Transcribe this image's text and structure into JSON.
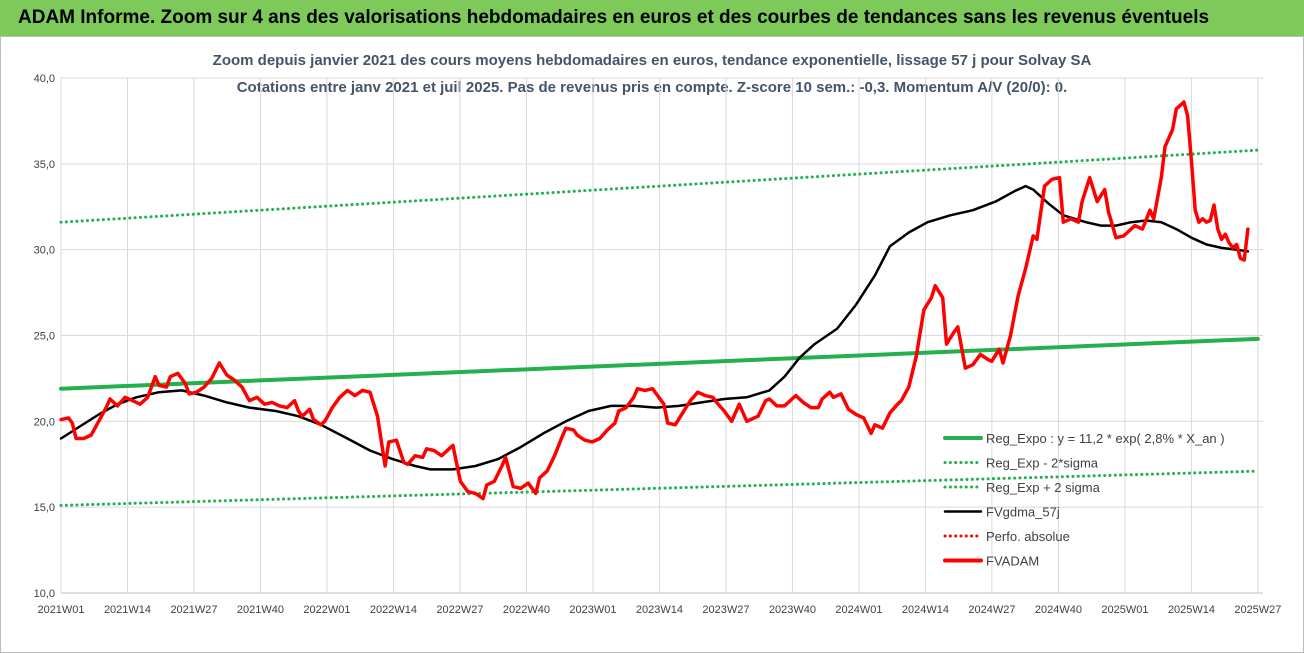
{
  "banner": {
    "text": "ADAM Informe. Zoom sur 4 ans des valorisations hebdomadaires en euros et des courbes de tendances sans les revenus éventuels"
  },
  "chart_data": {
    "type": "line",
    "title": "Zoom depuis janvier 2021 des cours moyens hebdomadaires en euros, tendance exponentielle, lissage 57 j pour Solvay SA",
    "subtitle": "Cotations entre janv 2021 et juil 2025. Pas de revenus pris en compte. Z-score 10 sem.: -0,3. Momentum A/V (20/0): 0.",
    "xlabel": "",
    "ylabel": "",
    "ylim": [
      10,
      40
    ],
    "yticks": [
      "10,0",
      "15,0",
      "20,0",
      "25,0",
      "30,0",
      "35,0",
      "40,0"
    ],
    "x_tick_labels": [
      "2021W01",
      "2021W14",
      "2021W27",
      "2021W40",
      "2022W01",
      "2022W14",
      "2022W27",
      "2022W40",
      "2023W01",
      "2023W14",
      "2023W27",
      "2023W40",
      "2024W01",
      "2024W14",
      "2024W27",
      "2024W40",
      "2025W01",
      "2025W14",
      "2025W27"
    ],
    "grid": true,
    "legend_position": "bottom-right",
    "colors": {
      "green": "#22b14c",
      "black": "#000000",
      "red": "#ff0000"
    },
    "series": [
      {
        "name": "Reg_Expo : y = 11,2 * exp( 2,8% *  X_an )",
        "color": "#22b14c",
        "style": "solid",
        "points": [
          [
            0,
            21.9
          ],
          [
            234,
            24.8
          ]
        ]
      },
      {
        "name": "Reg_Exp - 2*sigma",
        "color": "#22b14c",
        "style": "dotted",
        "points": [
          [
            0,
            15.1
          ],
          [
            234,
            17.1
          ]
        ]
      },
      {
        "name": "Reg_Exp + 2 sigma",
        "color": "#22b14c",
        "style": "dotted",
        "points": [
          [
            0,
            31.6
          ],
          [
            234,
            35.8
          ]
        ]
      },
      {
        "name": "FVgdma_57j",
        "color": "#000000",
        "style": "solid",
        "points": [
          [
            0,
            19.0
          ],
          [
            5,
            19.7
          ],
          [
            10,
            20.4
          ],
          [
            15,
            21.0
          ],
          [
            20,
            21.4
          ],
          [
            26,
            21.7
          ],
          [
            32,
            21.8
          ],
          [
            38,
            21.5
          ],
          [
            44,
            21.1
          ],
          [
            50,
            20.8
          ],
          [
            57,
            20.6
          ],
          [
            63,
            20.3
          ],
          [
            69,
            19.8
          ],
          [
            76,
            19.0
          ],
          [
            82,
            18.3
          ],
          [
            88,
            17.8
          ],
          [
            94,
            17.4
          ],
          [
            98,
            17.2
          ],
          [
            104,
            17.2
          ],
          [
            110,
            17.4
          ],
          [
            116,
            17.8
          ],
          [
            122,
            18.5
          ],
          [
            128,
            19.3
          ],
          [
            134,
            20.0
          ],
          [
            140,
            20.6
          ],
          [
            146,
            20.9
          ],
          [
            152,
            20.9
          ],
          [
            158,
            20.8
          ],
          [
            164,
            20.9
          ],
          [
            170,
            21.1
          ],
          [
            176,
            21.3
          ],
          [
            182,
            21.4
          ],
          [
            188,
            21.8
          ],
          [
            192,
            22.6
          ],
          [
            196,
            23.7
          ],
          [
            200,
            24.5
          ],
          [
            206,
            25.4
          ],
          [
            211,
            26.8
          ],
          [
            216,
            28.5
          ],
          [
            220,
            30.2
          ],
          [
            225,
            31.0
          ],
          [
            230,
            31.6
          ],
          [
            236,
            32.0
          ],
          [
            242,
            32.3
          ],
          [
            248,
            32.8
          ],
          [
            253,
            33.4
          ],
          [
            256,
            33.7
          ],
          [
            258,
            33.5
          ],
          [
            262,
            32.7
          ],
          [
            266,
            32.0
          ],
          [
            272,
            31.6
          ],
          [
            276,
            31.4
          ],
          [
            280,
            31.4
          ],
          [
            284,
            31.6
          ],
          [
            288,
            31.7
          ],
          [
            292,
            31.6
          ],
          [
            296,
            31.2
          ],
          [
            300,
            30.7
          ],
          [
            304,
            30.3
          ],
          [
            308,
            30.1
          ],
          [
            312,
            30.0
          ],
          [
            315,
            29.9
          ]
        ]
      },
      {
        "name": "Perfo. absolue",
        "color": "#ff0000",
        "style": "dotted",
        "points": []
      },
      {
        "name": "FVADAM",
        "color": "#ff0000",
        "style": "solid",
        "points": [
          [
            0,
            20.1
          ],
          [
            2,
            20.2
          ],
          [
            3,
            19.9
          ],
          [
            4,
            19.0
          ],
          [
            6,
            19.0
          ],
          [
            8,
            19.2
          ],
          [
            10,
            20.0
          ],
          [
            12,
            20.8
          ],
          [
            13,
            21.3
          ],
          [
            15,
            20.9
          ],
          [
            17,
            21.4
          ],
          [
            19,
            21.2
          ],
          [
            21,
            21.0
          ],
          [
            23,
            21.4
          ],
          [
            25,
            22.6
          ],
          [
            26,
            22.1
          ],
          [
            28,
            22.0
          ],
          [
            29,
            22.6
          ],
          [
            31,
            22.8
          ],
          [
            33,
            22.2
          ],
          [
            34,
            21.6
          ],
          [
            36,
            21.7
          ],
          [
            38,
            22.0
          ],
          [
            40,
            22.5
          ],
          [
            42,
            23.4
          ],
          [
            44,
            22.7
          ],
          [
            46,
            22.4
          ],
          [
            48,
            22.0
          ],
          [
            50,
            21.2
          ],
          [
            52,
            21.4
          ],
          [
            54,
            21.0
          ],
          [
            56,
            21.1
          ],
          [
            58,
            20.9
          ],
          [
            60,
            20.8
          ],
          [
            62,
            21.2
          ],
          [
            63,
            20.6
          ],
          [
            64,
            20.3
          ],
          [
            66,
            20.7
          ],
          [
            67,
            20.1
          ],
          [
            69,
            19.8
          ],
          [
            70,
            20.0
          ],
          [
            72,
            20.8
          ],
          [
            74,
            21.4
          ],
          [
            76,
            21.8
          ],
          [
            78,
            21.5
          ],
          [
            80,
            21.8
          ],
          [
            82,
            21.7
          ],
          [
            84,
            20.3
          ],
          [
            86,
            17.4
          ],
          [
            87,
            18.8
          ],
          [
            89,
            18.9
          ],
          [
            91,
            17.6
          ],
          [
            92,
            17.5
          ],
          [
            94,
            18.0
          ],
          [
            96,
            17.9
          ],
          [
            97,
            18.4
          ],
          [
            99,
            18.3
          ],
          [
            101,
            18.0
          ],
          [
            103,
            18.4
          ],
          [
            104,
            18.6
          ],
          [
            106,
            16.5
          ],
          [
            108,
            15.9
          ],
          [
            110,
            15.8
          ],
          [
            112,
            15.5
          ],
          [
            113,
            16.3
          ],
          [
            115,
            16.5
          ],
          [
            117,
            17.4
          ],
          [
            118,
            17.9
          ],
          [
            120,
            16.2
          ],
          [
            122,
            16.1
          ],
          [
            124,
            16.4
          ],
          [
            126,
            15.8
          ],
          [
            127,
            16.7
          ],
          [
            129,
            17.1
          ],
          [
            131,
            18.0
          ],
          [
            133,
            19.1
          ],
          [
            134,
            19.6
          ],
          [
            136,
            19.5
          ],
          [
            137,
            19.2
          ],
          [
            139,
            18.9
          ],
          [
            141,
            18.8
          ],
          [
            143,
            19.0
          ],
          [
            145,
            19.5
          ],
          [
            147,
            19.9
          ],
          [
            148,
            20.6
          ],
          [
            150,
            20.8
          ],
          [
            152,
            21.4
          ],
          [
            153,
            21.9
          ],
          [
            155,
            21.8
          ],
          [
            157,
            21.9
          ],
          [
            158,
            21.6
          ],
          [
            160,
            21.0
          ],
          [
            161,
            19.9
          ],
          [
            163,
            19.8
          ],
          [
            165,
            20.5
          ],
          [
            167,
            21.2
          ],
          [
            169,
            21.7
          ],
          [
            171,
            21.5
          ],
          [
            173,
            21.4
          ],
          [
            174,
            21.1
          ],
          [
            176,
            20.6
          ],
          [
            178,
            20.0
          ],
          [
            180,
            21.0
          ],
          [
            182,
            20.0
          ],
          [
            183,
            20.1
          ],
          [
            185,
            20.3
          ],
          [
            187,
            21.2
          ],
          [
            188,
            21.3
          ],
          [
            190,
            20.9
          ],
          [
            192,
            20.9
          ],
          [
            194,
            21.3
          ],
          [
            195,
            21.5
          ],
          [
            197,
            21.1
          ],
          [
            199,
            20.8
          ],
          [
            201,
            20.8
          ],
          [
            202,
            21.3
          ],
          [
            204,
            21.7
          ],
          [
            205,
            21.4
          ],
          [
            207,
            21.6
          ],
          [
            209,
            20.7
          ],
          [
            211,
            20.4
          ],
          [
            213,
            20.2
          ],
          [
            215,
            19.3
          ],
          [
            216,
            19.8
          ],
          [
            218,
            19.6
          ],
          [
            220,
            20.5
          ],
          [
            222,
            21.0
          ],
          [
            223,
            21.2
          ],
          [
            225,
            22.0
          ],
          [
            227,
            23.8
          ],
          [
            229,
            26.5
          ],
          [
            231,
            27.2
          ],
          [
            232,
            27.9
          ],
          [
            234,
            27.2
          ],
          [
            235,
            24.5
          ],
          [
            237,
            25.2
          ],
          [
            238,
            25.5
          ],
          [
            240,
            23.1
          ],
          [
            242,
            23.3
          ],
          [
            244,
            23.9
          ],
          [
            246,
            23.6
          ],
          [
            247,
            23.5
          ],
          [
            249,
            24.2
          ],
          [
            250,
            23.4
          ],
          [
            252,
            25.0
          ],
          [
            254,
            27.3
          ],
          [
            256,
            28.9
          ],
          [
            258,
            30.8
          ],
          [
            259,
            30.6
          ],
          [
            261,
            33.7
          ],
          [
            263,
            34.1
          ],
          [
            265,
            34.2
          ],
          [
            266,
            31.6
          ],
          [
            268,
            31.8
          ],
          [
            270,
            31.6
          ],
          [
            271,
            32.8
          ],
          [
            273,
            34.2
          ],
          [
            275,
            32.8
          ],
          [
            277,
            33.5
          ],
          [
            278,
            32.2
          ],
          [
            280,
            30.7
          ],
          [
            282,
            30.8
          ],
          [
            283,
            31.0
          ],
          [
            285,
            31.4
          ],
          [
            287,
            31.2
          ],
          [
            289,
            32.3
          ],
          [
            290,
            31.8
          ],
          [
            292,
            34.2
          ],
          [
            293,
            36.0
          ],
          [
            295,
            37.0
          ],
          [
            296,
            38.2
          ],
          [
            298,
            38.6
          ],
          [
            299,
            37.8
          ],
          [
            300,
            35.2
          ],
          [
            301,
            32.3
          ],
          [
            302,
            31.6
          ],
          [
            303,
            31.8
          ],
          [
            304,
            31.6
          ],
          [
            305,
            31.7
          ],
          [
            306,
            32.6
          ],
          [
            307,
            31.2
          ],
          [
            308,
            30.6
          ],
          [
            309,
            30.9
          ],
          [
            310,
            30.4
          ],
          [
            311,
            30.1
          ],
          [
            312,
            30.3
          ],
          [
            313,
            29.5
          ],
          [
            314,
            29.4
          ],
          [
            315,
            31.2
          ]
        ]
      }
    ]
  }
}
